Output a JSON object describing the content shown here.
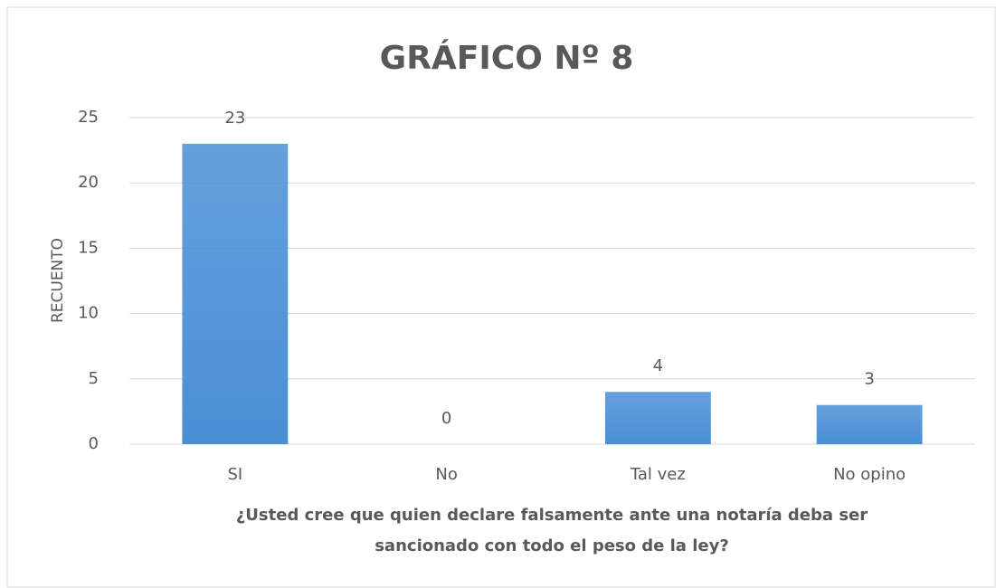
{
  "chart_data": {
    "type": "bar",
    "title": "GRÁFICO Nº 8",
    "ylabel": "RECUENTO",
    "xlabel": [
      "¿Usted cree que quien declare falsamente ante una notaría deba ser",
      "sancionado con todo el peso de la ley?"
    ],
    "categories": [
      "SI",
      "No",
      "Tal vez",
      "No opino"
    ],
    "values": [
      23,
      0,
      4,
      3
    ],
    "color": "#4a8fd6",
    "ylim": [
      0,
      25
    ],
    "yticks": [
      0,
      5,
      10,
      15,
      20,
      25
    ],
    "grid": true
  }
}
